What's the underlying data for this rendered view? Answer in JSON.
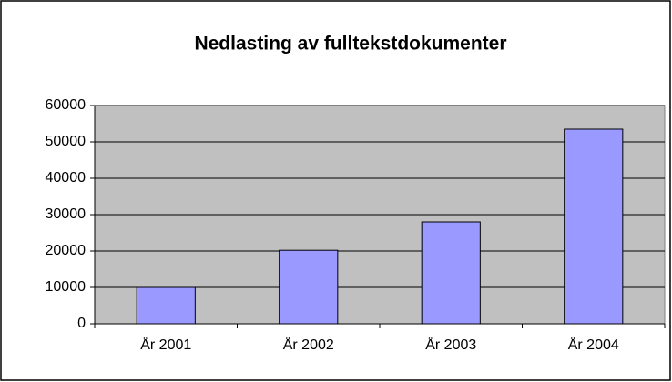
{
  "chart_data": {
    "type": "bar",
    "title": "Nedlasting av fulltekstdokumenter",
    "categories": [
      "År 2001",
      "År 2002",
      "År 2003",
      "År 2004"
    ],
    "values": [
      10000,
      20200,
      28000,
      53500
    ],
    "color": "#9999ff",
    "ylim": [
      0,
      60000
    ],
    "yticks": [
      0,
      10000,
      20000,
      30000,
      40000,
      50000,
      60000
    ],
    "grid": true
  }
}
